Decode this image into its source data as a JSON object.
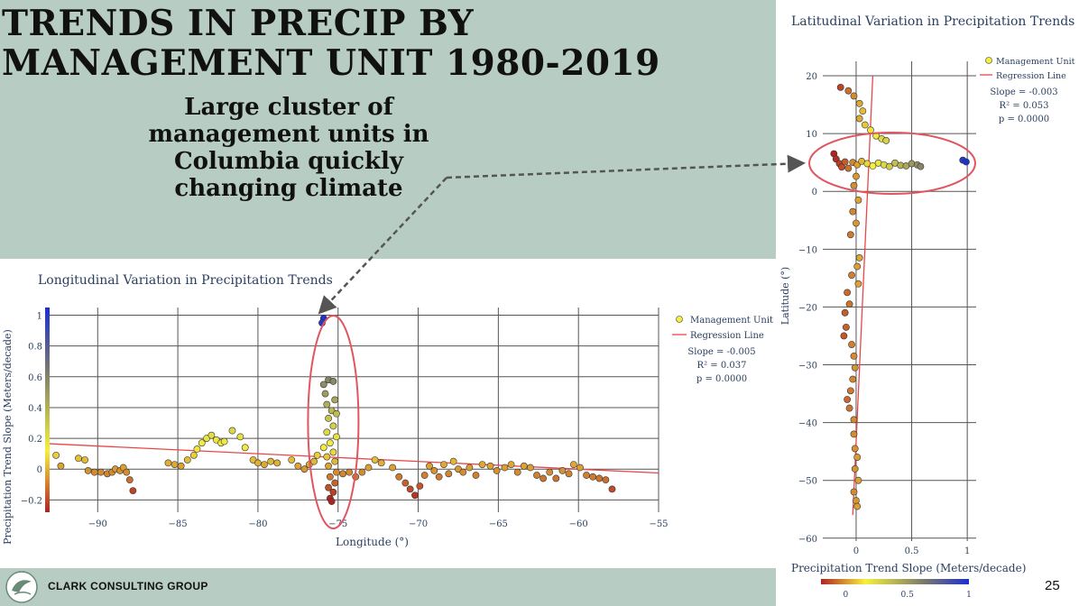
{
  "slide": {
    "title_line1": "TRENDS IN PRECIP BY",
    "title_line2": "MANAGEMENT UNIT 1980-2019",
    "callout": "Large cluster of management units in Columbia quickly changing climate",
    "company": "CLARK CONSULTING GROUP",
    "page_number": "25"
  },
  "colors": {
    "panel_bg": "#b7cdc3",
    "marker_low": "#b22222",
    "marker_mid": "#f5f03c",
    "marker_high": "#1c2fd0",
    "regression": "#e8474a",
    "highlight": "#e05560",
    "arrow": "#555555"
  },
  "chart_data": [
    {
      "type": "scatter",
      "title": "Longitudinal Variation in Precipitation Trends",
      "xlabel": "Longitude (°)",
      "ylabel": "Precipitation Trend Slope (Meters/decade)",
      "xlim": [
        -93,
        -55
      ],
      "ylim": [
        -0.28,
        1.05
      ],
      "xticks": [
        -90,
        -85,
        -80,
        -75,
        -70,
        -65,
        -60,
        -55
      ],
      "yticks": [
        -0.2,
        0,
        0.2,
        0.4,
        0.6,
        0.8,
        1
      ],
      "colorscale_range": [
        -0.2,
        1
      ],
      "legend": [
        "Management Unit",
        "Regression Line"
      ],
      "legend_position": "top-right",
      "stats": [
        "Slope = -0.005",
        "R² = 0.037",
        "p = 0.0000"
      ],
      "regression": [
        [
          -93,
          0.165
        ],
        [
          -55,
          -0.025
        ]
      ],
      "points": [
        [
          -92.6,
          0.09
        ],
        [
          -92.3,
          0.02
        ],
        [
          -91.2,
          0.07
        ],
        [
          -90.8,
          0.06
        ],
        [
          -90.6,
          -0.01
        ],
        [
          -90.2,
          -0.02
        ],
        [
          -89.8,
          -0.02
        ],
        [
          -89.4,
          -0.03
        ],
        [
          -89.1,
          -0.02
        ],
        [
          -88.9,
          0.0
        ],
        [
          -88.6,
          -0.01
        ],
        [
          -88.4,
          0.01
        ],
        [
          -88.2,
          -0.02
        ],
        [
          -88.0,
          -0.07
        ],
        [
          -87.8,
          -0.14
        ],
        [
          -85.6,
          0.04
        ],
        [
          -85.2,
          0.03
        ],
        [
          -84.8,
          0.02
        ],
        [
          -84.4,
          0.06
        ],
        [
          -84.0,
          0.09
        ],
        [
          -83.8,
          0.13
        ],
        [
          -83.5,
          0.17
        ],
        [
          -83.2,
          0.2
        ],
        [
          -82.9,
          0.22
        ],
        [
          -82.6,
          0.19
        ],
        [
          -82.3,
          0.17
        ],
        [
          -82.1,
          0.18
        ],
        [
          -81.6,
          0.25
        ],
        [
          -81.1,
          0.21
        ],
        [
          -80.8,
          0.14
        ],
        [
          -80.3,
          0.06
        ],
        [
          -80.0,
          0.04
        ],
        [
          -79.6,
          0.03
        ],
        [
          -79.2,
          0.05
        ],
        [
          -78.8,
          0.04
        ],
        [
          -77.9,
          0.06
        ],
        [
          -77.5,
          0.02
        ],
        [
          -77.1,
          0.0
        ],
        [
          -76.8,
          0.03
        ],
        [
          -76.5,
          0.05
        ],
        [
          -76.3,
          0.09
        ],
        [
          -75.9,
          0.98
        ],
        [
          -76.0,
          0.95
        ],
        [
          -75.6,
          0.58
        ],
        [
          -75.9,
          0.55
        ],
        [
          -75.3,
          0.57
        ],
        [
          -75.8,
          0.49
        ],
        [
          -75.2,
          0.45
        ],
        [
          -75.7,
          0.42
        ],
        [
          -75.4,
          0.38
        ],
        [
          -75.1,
          0.36
        ],
        [
          -75.6,
          0.33
        ],
        [
          -75.3,
          0.28
        ],
        [
          -75.7,
          0.24
        ],
        [
          -75.1,
          0.21
        ],
        [
          -75.5,
          0.17
        ],
        [
          -75.9,
          0.14
        ],
        [
          -75.3,
          0.11
        ],
        [
          -75.7,
          0.08
        ],
        [
          -75.2,
          0.05
        ],
        [
          -75.6,
          0.02
        ],
        [
          -75.1,
          -0.02
        ],
        [
          -75.5,
          -0.05
        ],
        [
          -75.2,
          -0.09
        ],
        [
          -75.6,
          -0.12
        ],
        [
          -75.3,
          -0.15
        ],
        [
          -75.5,
          -0.19
        ],
        [
          -75.4,
          -0.21
        ],
        [
          -74.7,
          -0.03
        ],
        [
          -74.3,
          -0.02
        ],
        [
          -73.9,
          -0.05
        ],
        [
          -73.5,
          -0.02
        ],
        [
          -73.1,
          0.01
        ],
        [
          -72.7,
          0.06
        ],
        [
          -72.3,
          0.04
        ],
        [
          -71.6,
          0.01
        ],
        [
          -71.2,
          -0.05
        ],
        [
          -70.8,
          -0.09
        ],
        [
          -70.5,
          -0.13
        ],
        [
          -70.2,
          -0.17
        ],
        [
          -69.9,
          -0.11
        ],
        [
          -69.6,
          -0.04
        ],
        [
          -69.3,
          0.02
        ],
        [
          -69.0,
          -0.01
        ],
        [
          -68.7,
          -0.05
        ],
        [
          -68.4,
          0.03
        ],
        [
          -68.1,
          -0.03
        ],
        [
          -67.8,
          0.05
        ],
        [
          -67.5,
          0.0
        ],
        [
          -67.2,
          -0.02
        ],
        [
          -66.8,
          0.01
        ],
        [
          -66.4,
          -0.04
        ],
        [
          -66.0,
          0.03
        ],
        [
          -65.5,
          0.02
        ],
        [
          -65.1,
          -0.01
        ],
        [
          -64.6,
          0.01
        ],
        [
          -64.2,
          0.03
        ],
        [
          -63.8,
          -0.02
        ],
        [
          -63.4,
          0.02
        ],
        [
          -63.0,
          0.01
        ],
        [
          -62.6,
          -0.04
        ],
        [
          -62.2,
          -0.06
        ],
        [
          -61.8,
          -0.02
        ],
        [
          -61.4,
          -0.06
        ],
        [
          -61.0,
          -0.01
        ],
        [
          -60.6,
          -0.03
        ],
        [
          -60.3,
          0.03
        ],
        [
          -59.9,
          0.01
        ],
        [
          -59.5,
          -0.04
        ],
        [
          -59.1,
          -0.05
        ],
        [
          -58.7,
          -0.06
        ],
        [
          -58.3,
          -0.07
        ],
        [
          -57.9,
          -0.13
        ]
      ]
    },
    {
      "type": "scatter",
      "title": "Latitudinal Variation in Precipitation Trends",
      "xlabel": "Precipitation Trend Slope (Meters/decade)",
      "ylabel": "Latitude (°)",
      "xlim": [
        -0.3,
        1.08
      ],
      "ylim": [
        -60.5,
        22.5
      ],
      "xticks": [
        0,
        0.5,
        1
      ],
      "yticks": [
        -60,
        -50,
        -40,
        -30,
        -20,
        -10,
        0,
        10,
        20
      ],
      "colorbar_ticks": [
        0,
        0.5,
        1
      ],
      "colorscale_range": [
        -0.2,
        1
      ],
      "legend": [
        "Management Unit",
        "Regression Line"
      ],
      "legend_position": "top-right",
      "stats": [
        "Slope = -0.003",
        "R² = 0.053",
        "p = 0.0000"
      ],
      "regression": [
        [
          -0.03,
          -56
        ],
        [
          0.15,
          20
        ]
      ],
      "points": [
        [
          -0.14,
          18.0
        ],
        [
          -0.07,
          17.4
        ],
        [
          -0.02,
          16.5
        ],
        [
          0.03,
          15.2
        ],
        [
          0.06,
          13.9
        ],
        [
          0.03,
          12.6
        ],
        [
          0.08,
          11.5
        ],
        [
          0.13,
          10.6
        ],
        [
          0.18,
          9.6
        ],
        [
          0.23,
          9.1
        ],
        [
          0.27,
          8.8
        ],
        [
          -0.2,
          6.5
        ],
        [
          -0.18,
          5.6
        ],
        [
          -0.15,
          4.8
        ],
        [
          -0.13,
          4.2
        ],
        [
          -0.1,
          5.1
        ],
        [
          -0.07,
          4.0
        ],
        [
          -0.03,
          5.0
        ],
        [
          0.01,
          4.6
        ],
        [
          0.05,
          5.2
        ],
        [
          0.1,
          4.8
        ],
        [
          0.15,
          4.4
        ],
        [
          0.2,
          4.9
        ],
        [
          0.25,
          4.6
        ],
        [
          0.3,
          4.3
        ],
        [
          0.35,
          4.9
        ],
        [
          0.4,
          4.5
        ],
        [
          0.45,
          4.4
        ],
        [
          0.5,
          4.8
        ],
        [
          0.55,
          4.6
        ],
        [
          0.58,
          4.3
        ],
        [
          0.96,
          5.4
        ],
        [
          0.99,
          5.1
        ],
        [
          0.0,
          2.6
        ],
        [
          -0.02,
          1.0
        ],
        [
          0.02,
          -1.5
        ],
        [
          -0.03,
          -3.5
        ],
        [
          0.0,
          -5.5
        ],
        [
          -0.05,
          -7.5
        ],
        [
          0.03,
          -11.5
        ],
        [
          0.01,
          -13.0
        ],
        [
          -0.04,
          -14.5
        ],
        [
          0.02,
          -16.0
        ],
        [
          -0.08,
          -17.5
        ],
        [
          -0.06,
          -19.5
        ],
        [
          -0.1,
          -21.0
        ],
        [
          -0.09,
          -23.5
        ],
        [
          -0.11,
          -25.0
        ],
        [
          -0.04,
          -26.5
        ],
        [
          -0.02,
          -28.5
        ],
        [
          -0.01,
          -30.5
        ],
        [
          -0.03,
          -32.5
        ],
        [
          -0.05,
          -34.5
        ],
        [
          -0.08,
          -36.0
        ],
        [
          -0.06,
          -37.5
        ],
        [
          -0.02,
          -39.5
        ],
        [
          -0.02,
          -42.0
        ],
        [
          -0.01,
          -44.5
        ],
        [
          0.01,
          -46.0
        ],
        [
          -0.01,
          -48.0
        ],
        [
          0.02,
          -50.0
        ],
        [
          -0.02,
          -52.0
        ],
        [
          0.0,
          -53.5
        ],
        [
          0.01,
          -54.5
        ]
      ]
    }
  ]
}
